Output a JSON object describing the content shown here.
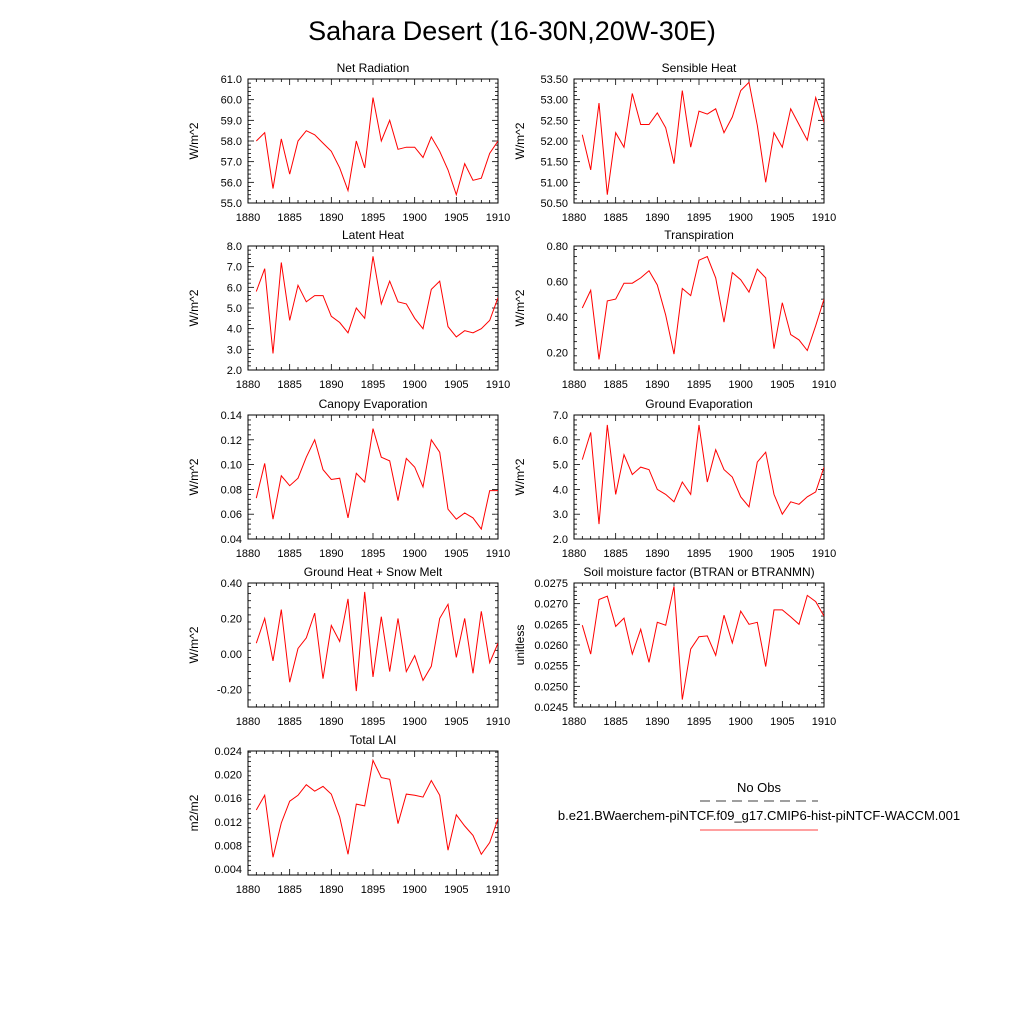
{
  "title": "Sahara Desert (16-30N,20W-30E)",
  "legend": {
    "obs_label": "No Obs",
    "model_label": "b.e21.BWaerchem-piNTCF.f09_g17.CMIP6-hist-piNTCF-WACCM.001",
    "obs_color": "#000000",
    "model_color": "#ff0000"
  },
  "colors": {
    "series": "#ff0000",
    "axis": "#000000"
  },
  "chart_data": [
    {
      "type": "line",
      "title": "Net Radiation",
      "ylabel": "W/m^2",
      "xlim": [
        1880,
        1910
      ],
      "ylim": [
        55.0,
        61.0
      ],
      "xticks": [
        1880,
        1885,
        1890,
        1895,
        1900,
        1905,
        1910
      ],
      "yticks": [
        55.0,
        56.0,
        57.0,
        58.0,
        59.0,
        60.0,
        61.0
      ],
      "ytick_labels": [
        "55.0",
        "56.0",
        "57.0",
        "58.0",
        "59.0",
        "60.0",
        "61.0"
      ],
      "x": [
        1881,
        1882,
        1883,
        1884,
        1885,
        1886,
        1887,
        1888,
        1889,
        1890,
        1891,
        1892,
        1893,
        1894,
        1895,
        1896,
        1897,
        1898,
        1899,
        1900,
        1901,
        1902,
        1903,
        1904,
        1905,
        1906,
        1907,
        1908,
        1909,
        1910
      ],
      "values": [
        58.0,
        58.4,
        55.7,
        58.1,
        56.4,
        58.0,
        58.5,
        58.3,
        57.9,
        57.5,
        56.7,
        55.6,
        58.0,
        56.7,
        60.1,
        58.0,
        59.0,
        57.6,
        57.7,
        57.7,
        57.2,
        58.2,
        57.5,
        56.6,
        55.4,
        56.9,
        56.1,
        56.2,
        57.4,
        58.0
      ]
    },
    {
      "type": "line",
      "title": "Sensible Heat",
      "ylabel": "W/m^2",
      "xlim": [
        1880,
        1910
      ],
      "ylim": [
        50.5,
        53.5
      ],
      "xticks": [
        1880,
        1885,
        1890,
        1895,
        1900,
        1905,
        1910
      ],
      "yticks": [
        50.5,
        51.0,
        51.5,
        52.0,
        52.5,
        53.0,
        53.5
      ],
      "ytick_labels": [
        "50.50",
        "51.00",
        "51.50",
        "52.00",
        "52.50",
        "53.00",
        "53.50"
      ],
      "x": [
        1881,
        1882,
        1883,
        1884,
        1885,
        1886,
        1887,
        1888,
        1889,
        1890,
        1891,
        1892,
        1893,
        1894,
        1895,
        1896,
        1897,
        1898,
        1899,
        1900,
        1901,
        1902,
        1903,
        1904,
        1905,
        1906,
        1907,
        1908,
        1909,
        1910
      ],
      "values": [
        52.15,
        51.3,
        52.92,
        50.7,
        52.2,
        51.85,
        53.15,
        52.4,
        52.4,
        52.68,
        52.32,
        51.45,
        53.22,
        51.85,
        52.72,
        52.65,
        52.78,
        52.2,
        52.58,
        53.22,
        53.42,
        52.38,
        51.0,
        52.2,
        51.85,
        52.78,
        52.4,
        52.02,
        53.05,
        52.45
      ]
    },
    {
      "type": "line",
      "title": "Latent Heat",
      "ylabel": "W/m^2",
      "xlim": [
        1880,
        1910
      ],
      "ylim": [
        2.0,
        8.0
      ],
      "xticks": [
        1880,
        1885,
        1890,
        1895,
        1900,
        1905,
        1910
      ],
      "yticks": [
        2.0,
        3.0,
        4.0,
        5.0,
        6.0,
        7.0,
        8.0
      ],
      "ytick_labels": [
        "2.0",
        "3.0",
        "4.0",
        "5.0",
        "6.0",
        "7.0",
        "8.0"
      ],
      "x": [
        1881,
        1882,
        1883,
        1884,
        1885,
        1886,
        1887,
        1888,
        1889,
        1890,
        1891,
        1892,
        1893,
        1894,
        1895,
        1896,
        1897,
        1898,
        1899,
        1900,
        1901,
        1902,
        1903,
        1904,
        1905,
        1906,
        1907,
        1908,
        1909,
        1910
      ],
      "values": [
        5.8,
        6.9,
        2.8,
        7.2,
        4.4,
        6.1,
        5.3,
        5.6,
        5.6,
        4.6,
        4.3,
        3.8,
        5.0,
        4.5,
        7.5,
        5.2,
        6.3,
        5.3,
        5.2,
        4.5,
        4.0,
        5.9,
        6.3,
        4.1,
        3.6,
        3.9,
        3.8,
        4.0,
        4.4,
        5.5
      ]
    },
    {
      "type": "line",
      "title": "Transpiration",
      "ylabel": "W/m^2",
      "xlim": [
        1880,
        1910
      ],
      "ylim": [
        0.1,
        0.8
      ],
      "xticks": [
        1880,
        1885,
        1890,
        1895,
        1900,
        1905,
        1910
      ],
      "yticks": [
        0.2,
        0.4,
        0.6,
        0.8
      ],
      "ytick_labels": [
        "0.20",
        "0.40",
        "0.60",
        "0.80"
      ],
      "x": [
        1881,
        1882,
        1883,
        1884,
        1885,
        1886,
        1887,
        1888,
        1889,
        1890,
        1891,
        1892,
        1893,
        1894,
        1895,
        1896,
        1897,
        1898,
        1899,
        1900,
        1901,
        1902,
        1903,
        1904,
        1905,
        1906,
        1907,
        1908,
        1909,
        1910
      ],
      "values": [
        0.45,
        0.55,
        0.16,
        0.49,
        0.5,
        0.59,
        0.59,
        0.62,
        0.66,
        0.58,
        0.41,
        0.19,
        0.56,
        0.52,
        0.72,
        0.74,
        0.62,
        0.37,
        0.65,
        0.61,
        0.54,
        0.67,
        0.62,
        0.22,
        0.48,
        0.3,
        0.27,
        0.21,
        0.35,
        0.5
      ]
    },
    {
      "type": "line",
      "title": "Canopy Evaporation",
      "ylabel": "W/m^2",
      "xlim": [
        1880,
        1910
      ],
      "ylim": [
        0.04,
        0.14
      ],
      "xticks": [
        1880,
        1885,
        1890,
        1895,
        1900,
        1905,
        1910
      ],
      "yticks": [
        0.04,
        0.06,
        0.08,
        0.1,
        0.12,
        0.14
      ],
      "ytick_labels": [
        "0.04",
        "0.06",
        "0.08",
        "0.10",
        "0.12",
        "0.14"
      ],
      "x": [
        1881,
        1882,
        1883,
        1884,
        1885,
        1886,
        1887,
        1888,
        1889,
        1890,
        1891,
        1892,
        1893,
        1894,
        1895,
        1896,
        1897,
        1898,
        1899,
        1900,
        1901,
        1902,
        1903,
        1904,
        1905,
        1906,
        1907,
        1908,
        1909,
        1910
      ],
      "values": [
        0.073,
        0.101,
        0.056,
        0.091,
        0.083,
        0.089,
        0.106,
        0.12,
        0.096,
        0.088,
        0.089,
        0.057,
        0.093,
        0.086,
        0.129,
        0.106,
        0.103,
        0.071,
        0.105,
        0.098,
        0.082,
        0.12,
        0.11,
        0.064,
        0.056,
        0.061,
        0.057,
        0.048,
        0.079,
        0.079
      ]
    },
    {
      "type": "line",
      "title": "Ground Evaporation",
      "ylabel": "W/m^2",
      "xlim": [
        1880,
        1910
      ],
      "ylim": [
        2.0,
        7.0
      ],
      "xticks": [
        1880,
        1885,
        1890,
        1895,
        1900,
        1905,
        1910
      ],
      "yticks": [
        2.0,
        3.0,
        4.0,
        5.0,
        6.0,
        7.0
      ],
      "ytick_labels": [
        "2.0",
        "3.0",
        "4.0",
        "5.0",
        "6.0",
        "7.0"
      ],
      "x": [
        1881,
        1882,
        1883,
        1884,
        1885,
        1886,
        1887,
        1888,
        1889,
        1890,
        1891,
        1892,
        1893,
        1894,
        1895,
        1896,
        1897,
        1898,
        1899,
        1900,
        1901,
        1902,
        1903,
        1904,
        1905,
        1906,
        1907,
        1908,
        1909,
        1910
      ],
      "values": [
        5.2,
        6.3,
        2.6,
        6.6,
        3.8,
        5.4,
        4.6,
        4.9,
        4.8,
        4.0,
        3.8,
        3.5,
        4.3,
        3.8,
        6.6,
        4.3,
        5.6,
        4.8,
        4.5,
        3.7,
        3.3,
        5.1,
        5.5,
        3.8,
        3.0,
        3.5,
        3.4,
        3.7,
        3.9,
        4.9
      ]
    },
    {
      "type": "line",
      "title": "Ground Heat + Snow Melt",
      "ylabel": "W/m^2",
      "xlim": [
        1880,
        1910
      ],
      "ylim": [
        -0.3,
        0.4
      ],
      "xticks": [
        1880,
        1885,
        1890,
        1895,
        1900,
        1905,
        1910
      ],
      "yticks": [
        -0.2,
        0.0,
        0.2,
        0.4
      ],
      "ytick_labels": [
        "-0.20",
        "0.00",
        "0.20",
        "0.40"
      ],
      "x": [
        1881,
        1882,
        1883,
        1884,
        1885,
        1886,
        1887,
        1888,
        1889,
        1890,
        1891,
        1892,
        1893,
        1894,
        1895,
        1896,
        1897,
        1898,
        1899,
        1900,
        1901,
        1902,
        1903,
        1904,
        1905,
        1906,
        1907,
        1908,
        1909,
        1910
      ],
      "values": [
        0.06,
        0.2,
        -0.04,
        0.25,
        -0.16,
        0.03,
        0.09,
        0.23,
        -0.14,
        0.16,
        0.07,
        0.31,
        -0.21,
        0.35,
        -0.13,
        0.21,
        -0.1,
        0.2,
        -0.1,
        -0.01,
        -0.15,
        -0.07,
        0.2,
        0.28,
        -0.02,
        0.2,
        -0.11,
        0.24,
        -0.05,
        0.06
      ]
    },
    {
      "type": "line",
      "title": "Soil moisture factor (BTRAN or BTRANMN)",
      "ylabel": "unitless",
      "xlim": [
        1880,
        1910
      ],
      "ylim": [
        0.0245,
        0.0275
      ],
      "xticks": [
        1880,
        1885,
        1890,
        1895,
        1900,
        1905,
        1910
      ],
      "yticks": [
        0.0245,
        0.025,
        0.0255,
        0.026,
        0.0265,
        0.027,
        0.0275
      ],
      "ytick_labels": [
        "0.0245",
        "0.0250",
        "0.0255",
        "0.0260",
        "0.0265",
        "0.0270",
        "0.0275"
      ],
      "x": [
        1881,
        1882,
        1883,
        1884,
        1885,
        1886,
        1887,
        1888,
        1889,
        1890,
        1891,
        1892,
        1893,
        1894,
        1895,
        1896,
        1897,
        1898,
        1899,
        1900,
        1901,
        1902,
        1903,
        1904,
        1905,
        1906,
        1907,
        1908,
        1909,
        1910
      ],
      "values": [
        0.02648,
        0.02578,
        0.0271,
        0.02718,
        0.02645,
        0.02665,
        0.02578,
        0.02638,
        0.02558,
        0.02655,
        0.02648,
        0.02742,
        0.02468,
        0.0259,
        0.0262,
        0.02622,
        0.02575,
        0.02672,
        0.02605,
        0.02682,
        0.0265,
        0.02655,
        0.02548,
        0.02685,
        0.02685,
        0.02668,
        0.0265,
        0.0272,
        0.02705,
        0.0267
      ]
    },
    {
      "type": "line",
      "title": "Total LAI",
      "ylabel": "m2/m2",
      "xlim": [
        1880,
        1910
      ],
      "ylim": [
        0.003,
        0.024
      ],
      "xticks": [
        1880,
        1885,
        1890,
        1895,
        1900,
        1905,
        1910
      ],
      "yticks": [
        0.004,
        0.008,
        0.012,
        0.016,
        0.02,
        0.024
      ],
      "ytick_labels": [
        "0.004",
        "0.008",
        "0.012",
        "0.016",
        "0.020",
        "0.024"
      ],
      "x": [
        1881,
        1882,
        1883,
        1884,
        1885,
        1886,
        1887,
        1888,
        1889,
        1890,
        1891,
        1892,
        1893,
        1894,
        1895,
        1896,
        1897,
        1898,
        1899,
        1900,
        1901,
        1902,
        1903,
        1904,
        1905,
        1906,
        1907,
        1908,
        1909,
        1910
      ],
      "values": [
        0.014,
        0.0165,
        0.006,
        0.0118,
        0.0155,
        0.0165,
        0.0183,
        0.0172,
        0.018,
        0.0167,
        0.0128,
        0.0065,
        0.015,
        0.0147,
        0.0224,
        0.0195,
        0.0192,
        0.0117,
        0.0167,
        0.0165,
        0.0162,
        0.019,
        0.0165,
        0.0072,
        0.0132,
        0.0113,
        0.0097,
        0.0065,
        0.0085,
        0.0125
      ]
    }
  ]
}
